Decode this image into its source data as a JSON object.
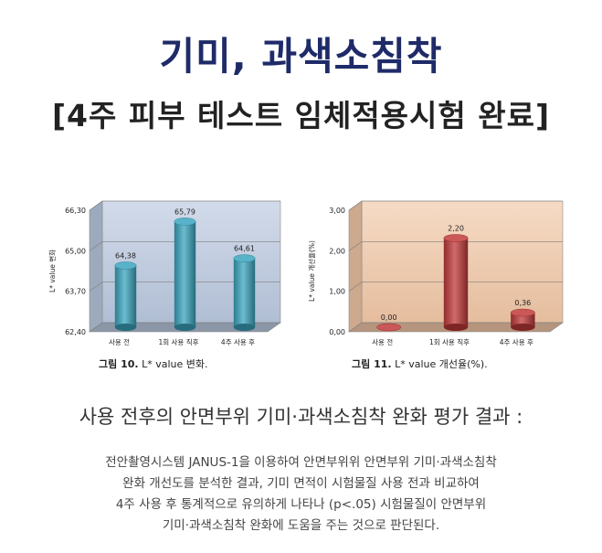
{
  "header": {
    "title": "기미, 과색소침착",
    "subtitle": "[4주 피부 테스트 임체적용시험 완료]"
  },
  "chart_data": [
    {
      "type": "bar",
      "ylabel": "L* value 변화",
      "ylim": [
        62.4,
        66.3
      ],
      "yticks": [
        "62,40",
        "63,70",
        "65,00",
        "66,30"
      ],
      "categories": [
        "사용 전",
        "1회 사용 직후",
        "4주 사용 후"
      ],
      "values": [
        64.38,
        65.79,
        64.61
      ],
      "value_labels": [
        "64,38",
        "65,79",
        "64,61"
      ],
      "caption_label": "그림 10.",
      "caption_text": "L* value 변화.",
      "bar_color": "#3ba6bf",
      "background": "#b9c8df"
    },
    {
      "type": "bar",
      "ylabel": "L* value 개선율(%)",
      "ylim": [
        0,
        3
      ],
      "yticks": [
        "0,00",
        "1,00",
        "2,00",
        "3,00"
      ],
      "categories": [
        "사용 전",
        "1회 사용 직후",
        "4주 사용 후"
      ],
      "values": [
        0.0,
        2.2,
        0.36
      ],
      "value_labels": [
        "0,00",
        "2,20",
        "0,36"
      ],
      "caption_label": "그림 11.",
      "caption_text": "L* value 개선율(%).",
      "bar_color": "#c23a3a",
      "background": "#f1c7a6"
    }
  ],
  "summary_title": "사용 전후의 안면부위 기미·과색소침착 완화 평가 결과 :",
  "description": [
    "전안촬영시스템 JANUS-1을 이용하여 안면부위위 안면부위 기미·과색소침착",
    "완화 개선도를 분석한 결과, 기미 면적이 시험물질 사용 전과 비교하여",
    "4주 사용 후 통계적으로 유의하게 나타나 (p<.05) 시험물질이 안면부위",
    "기미·과색소침착 완화에 도움을 주는 것으로 판단된다."
  ]
}
